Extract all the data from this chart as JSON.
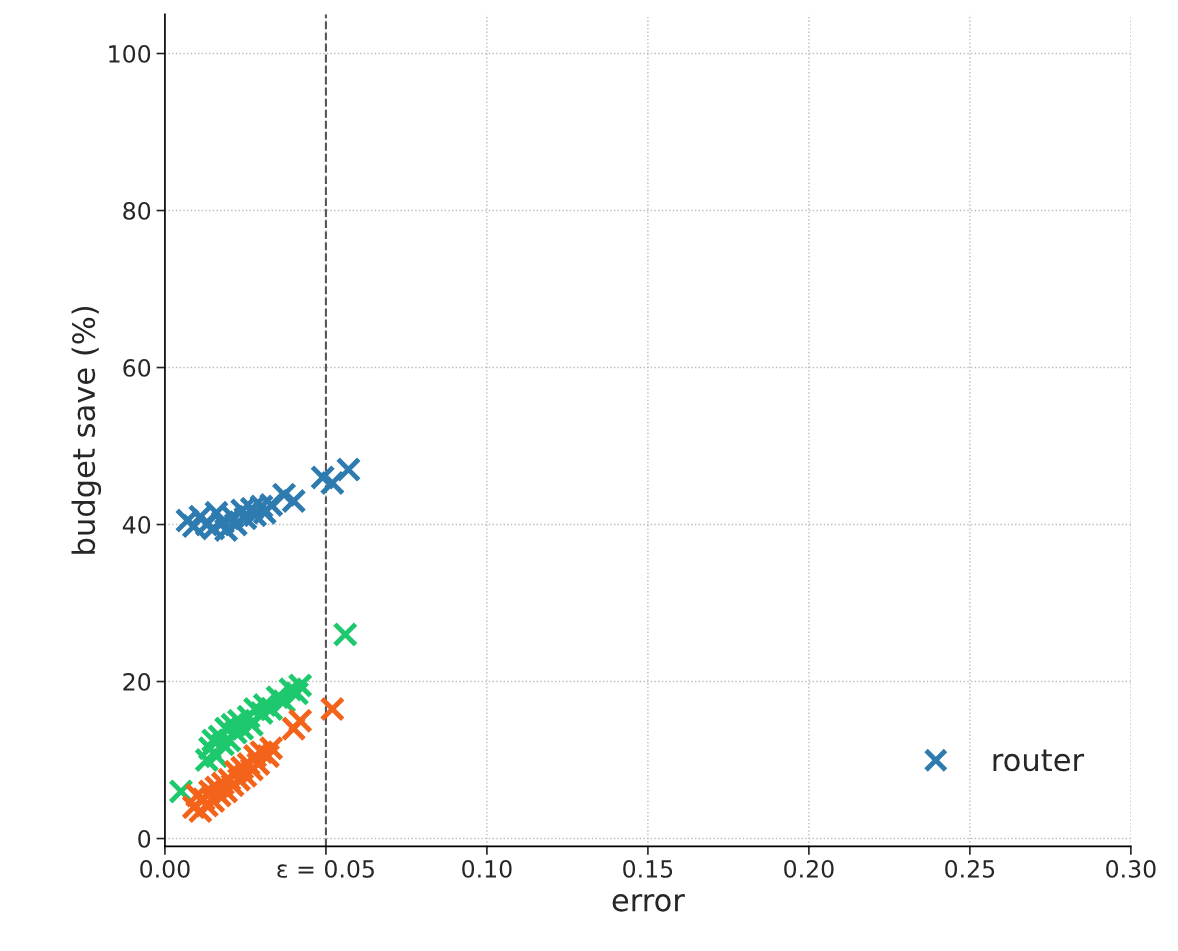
{
  "chart_data": {
    "type": "scatter",
    "xlabel": "error",
    "ylabel": "budget save (%)",
    "xlim": [
      0,
      0.3
    ],
    "ylim": [
      -1,
      105
    ],
    "xticks": [
      {
        "value": 0,
        "label": "0.00"
      },
      {
        "value": 0.05,
        "label": "ε = 0.05"
      },
      {
        "value": 0.1,
        "label": "0.10"
      },
      {
        "value": 0.15,
        "label": "0.15"
      },
      {
        "value": 0.2,
        "label": "0.20"
      },
      {
        "value": 0.25,
        "label": "0.25"
      },
      {
        "value": 0.3,
        "label": "0.30"
      }
    ],
    "yticks": [
      0,
      20,
      40,
      60,
      80,
      100
    ],
    "grid": true,
    "legend": "bottom right",
    "marker": "cross",
    "ref_lines": [
      {
        "axis": "x",
        "value": 0.05,
        "color": "#555555",
        "line_style": "dashed"
      }
    ],
    "series": [
      {
        "name": "router",
        "color": "#2e7bb0",
        "x": [
          0.007,
          0.009,
          0.011,
          0.013,
          0.015,
          0.016,
          0.018,
          0.019,
          0.021,
          0.022,
          0.024,
          0.025,
          0.027,
          0.028,
          0.03,
          0.031,
          0.033,
          0.037,
          0.04,
          0.049,
          0.052,
          0.057
        ],
        "values": [
          40.5,
          39.8,
          41,
          40,
          39.5,
          41.5,
          40.3,
          39.3,
          41,
          40,
          41.8,
          40.8,
          42,
          41.2,
          42.3,
          41.5,
          42.5,
          43.8,
          43,
          46,
          45.3,
          47
        ]
      },
      {
        "color": "#1ec96e",
        "x": [
          0.005,
          0.013,
          0.014,
          0.015,
          0.016,
          0.017,
          0.018,
          0.019,
          0.02,
          0.021,
          0.022,
          0.023,
          0.024,
          0.026,
          0.027,
          0.028,
          0.03,
          0.031,
          0.033,
          0.035,
          0.037,
          0.039,
          0.041,
          0.042,
          0.056
        ],
        "values": [
          6,
          10,
          11.5,
          12.5,
          10.5,
          13,
          12,
          14,
          12.5,
          14.5,
          13.5,
          15,
          14,
          15.5,
          14.5,
          16.5,
          16,
          17,
          16.5,
          18,
          17.5,
          19,
          18.5,
          19.5,
          26
        ]
      },
      {
        "color": "#f4631a",
        "x": [
          0.009,
          0.01,
          0.011,
          0.012,
          0.013,
          0.014,
          0.015,
          0.016,
          0.017,
          0.018,
          0.019,
          0.02,
          0.021,
          0.022,
          0.023,
          0.024,
          0.025,
          0.026,
          0.027,
          0.028,
          0.029,
          0.03,
          0.032,
          0.033,
          0.04,
          0.042,
          0.052
        ],
        "values": [
          4,
          5.5,
          3.5,
          5,
          4.2,
          6,
          4.8,
          6.5,
          5.5,
          7,
          6,
          7.5,
          6.8,
          8.5,
          7.5,
          9,
          8,
          9.5,
          8.8,
          10.5,
          9.5,
          11,
          10.5,
          11.5,
          14,
          15,
          16.5
        ]
      }
    ]
  }
}
